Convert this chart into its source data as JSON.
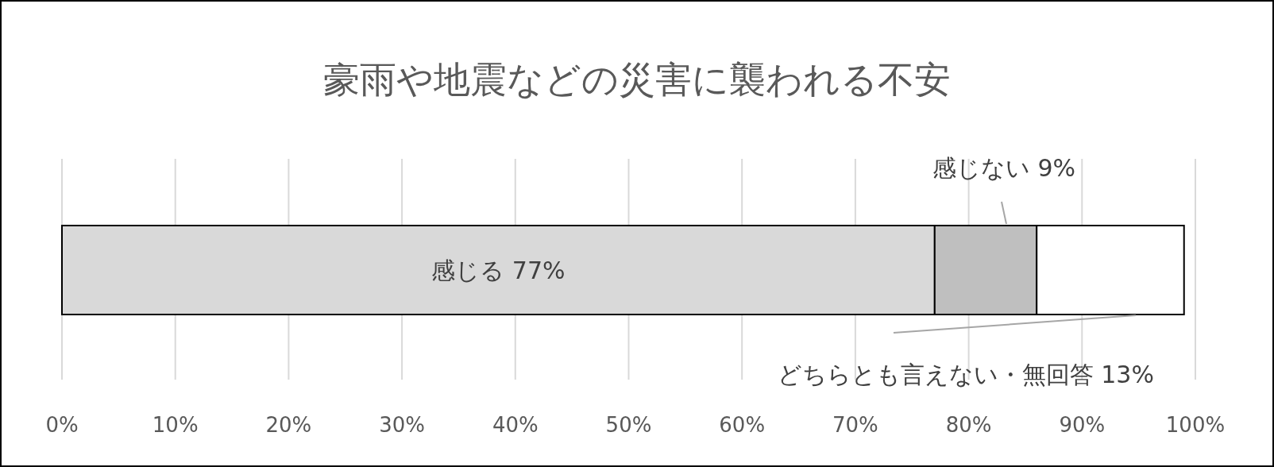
{
  "chart_data": {
    "type": "bar",
    "orientation": "horizontal",
    "stacked": true,
    "title": "豪雨や地震などの災害に襲われる不安",
    "categories": [
      null
    ],
    "series": [
      {
        "name": "感じる",
        "color": "#d9d9d9",
        "values": [
          77
        ],
        "value_labels": [
          "77%"
        ]
      },
      {
        "name": "感じない",
        "color": "#bfbfbf",
        "values": [
          9
        ],
        "value_labels": [
          "9%"
        ]
      },
      {
        "name": "どちらとも言えない・無回答",
        "color": "#ffffff",
        "values": [
          13
        ],
        "value_labels": [
          "13%"
        ]
      }
    ],
    "xlim": [
      0,
      100
    ],
    "xticks": [
      {
        "value": 0,
        "label": "0%"
      },
      {
        "value": 10,
        "label": "10%"
      },
      {
        "value": 20,
        "label": "20%"
      },
      {
        "value": 30,
        "label": "30%"
      },
      {
        "value": 40,
        "label": "40%"
      },
      {
        "value": 50,
        "label": "50%"
      },
      {
        "value": 60,
        "label": "60%"
      },
      {
        "value": 70,
        "label": "70%"
      },
      {
        "value": 80,
        "label": "80%"
      },
      {
        "value": 90,
        "label": "90%"
      },
      {
        "value": 100,
        "label": "100%"
      }
    ],
    "grid": "x",
    "tick_labels": "x"
  }
}
